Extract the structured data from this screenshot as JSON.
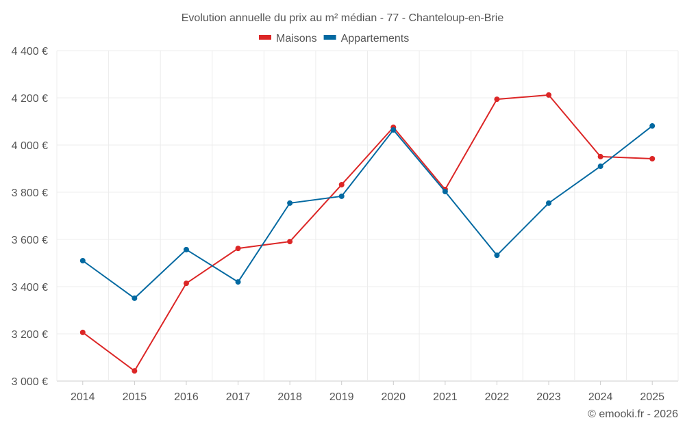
{
  "chart_data": {
    "type": "line",
    "title": "Evolution annuelle du prix au m² médian - 77 - Chanteloup-en-Brie",
    "xlabel": "",
    "ylabel": "",
    "categories": [
      "2014",
      "2015",
      "2016",
      "2017",
      "2018",
      "2019",
      "2020",
      "2021",
      "2022",
      "2023",
      "2024",
      "2025"
    ],
    "ylim": [
      3000,
      4400
    ],
    "yticks": [
      3000,
      3200,
      3400,
      3600,
      3800,
      4000,
      4200,
      4400
    ],
    "ytick_labels": [
      "3 000 €",
      "3 200 €",
      "3 400 €",
      "3 600 €",
      "3 800 €",
      "4 000 €",
      "4 200 €",
      "4 400 €"
    ],
    "grid": true,
    "legend_position": "top-center",
    "series": [
      {
        "name": "Maisons",
        "color": "#dc2626",
        "values": [
          3206,
          3043,
          3414,
          3562,
          3591,
          3832,
          4075,
          3812,
          4194,
          4212,
          3951,
          3942
        ]
      },
      {
        "name": "Appartements",
        "color": "#0369a1",
        "values": [
          3510,
          3351,
          3557,
          3420,
          3754,
          3783,
          4064,
          3803,
          3533,
          3754,
          3910,
          4081
        ]
      }
    ],
    "credit": "© emooki.fr - 2026"
  }
}
